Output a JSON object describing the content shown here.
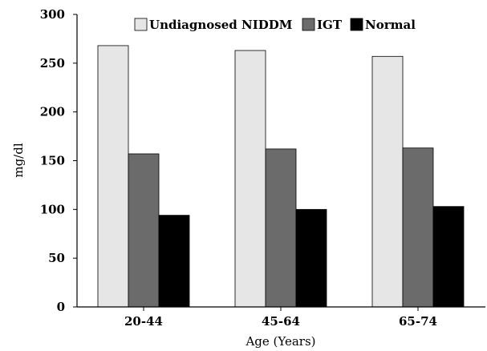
{
  "chart_data": {
    "type": "bar",
    "title": "",
    "xlabel": "Age (Years)",
    "ylabel": "mg/dl",
    "categories": [
      "20-44",
      "45-64",
      "65-74"
    ],
    "ylim": [
      0,
      300
    ],
    "yticks": [
      0,
      50,
      100,
      150,
      200,
      250,
      300
    ],
    "grid": false,
    "legend_position": "top",
    "series": [
      {
        "name": "Undiagnosed NIDDM",
        "color": "#e6e6e6",
        "values": [
          268,
          263,
          257
        ]
      },
      {
        "name": "IGT",
        "color": "#6b6b6b",
        "values": [
          157,
          162,
          163
        ]
      },
      {
        "name": "Normal",
        "color": "#000000",
        "values": [
          94,
          100,
          103
        ]
      }
    ]
  }
}
